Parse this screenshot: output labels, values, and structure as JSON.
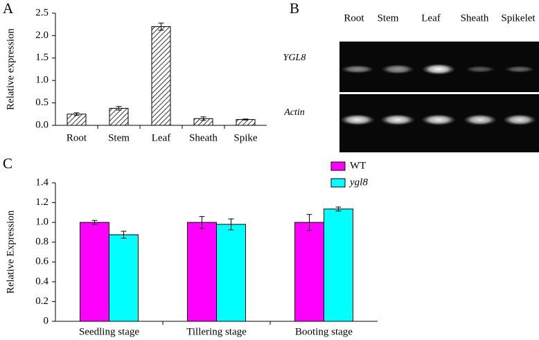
{
  "chart_data": [
    {
      "type": "bar",
      "label": "A",
      "y_label": "Relative expression",
      "categories": [
        "Root",
        "Stem",
        "Leaf",
        "Sheath",
        "Spike"
      ],
      "values": [
        0.25,
        0.38,
        2.2,
        0.15,
        0.13
      ],
      "errors": [
        0.03,
        0.04,
        0.08,
        0.04,
        0.01
      ],
      "color": "#000000",
      "ylim": [
        0,
        2.5
      ],
      "yticks": [
        {
          "value": 0,
          "label": "0.0"
        },
        0.5,
        {
          "value": 1,
          "label": "1.0"
        },
        1.5,
        {
          "value": 2,
          "label": "2.0"
        },
        2.5
      ]
    },
    {
      "type": "bar",
      "label": "C",
      "y_label": "Relative Expression",
      "categories": [
        "Seedling stage",
        "Tillering stage",
        "Booting stage"
      ],
      "series": [
        {
          "name": "WT",
          "color": "#ff00ff",
          "values": [
            1.0,
            1.0,
            1.0
          ],
          "errors": [
            0.02,
            0.06,
            0.08
          ]
        },
        {
          "name": "ygl8",
          "color": "#00ffff",
          "values": [
            0.875,
            0.98,
            1.135
          ],
          "errors": [
            0.035,
            0.055,
            0.02
          ]
        }
      ],
      "ylim": [
        0,
        1.4
      ],
      "yticks": [
        0,
        0.2,
        0.4,
        0.6,
        0.8,
        {
          "value": 1,
          "label": "1.0"
        },
        1.2,
        1.4
      ]
    }
  ],
  "gel": {
    "label": "B",
    "lanes": [
      "Root",
      "Stem",
      "Leaf",
      "Sheath",
      "Spikelet"
    ],
    "genes": [
      "YGL8",
      "Actin"
    ]
  }
}
